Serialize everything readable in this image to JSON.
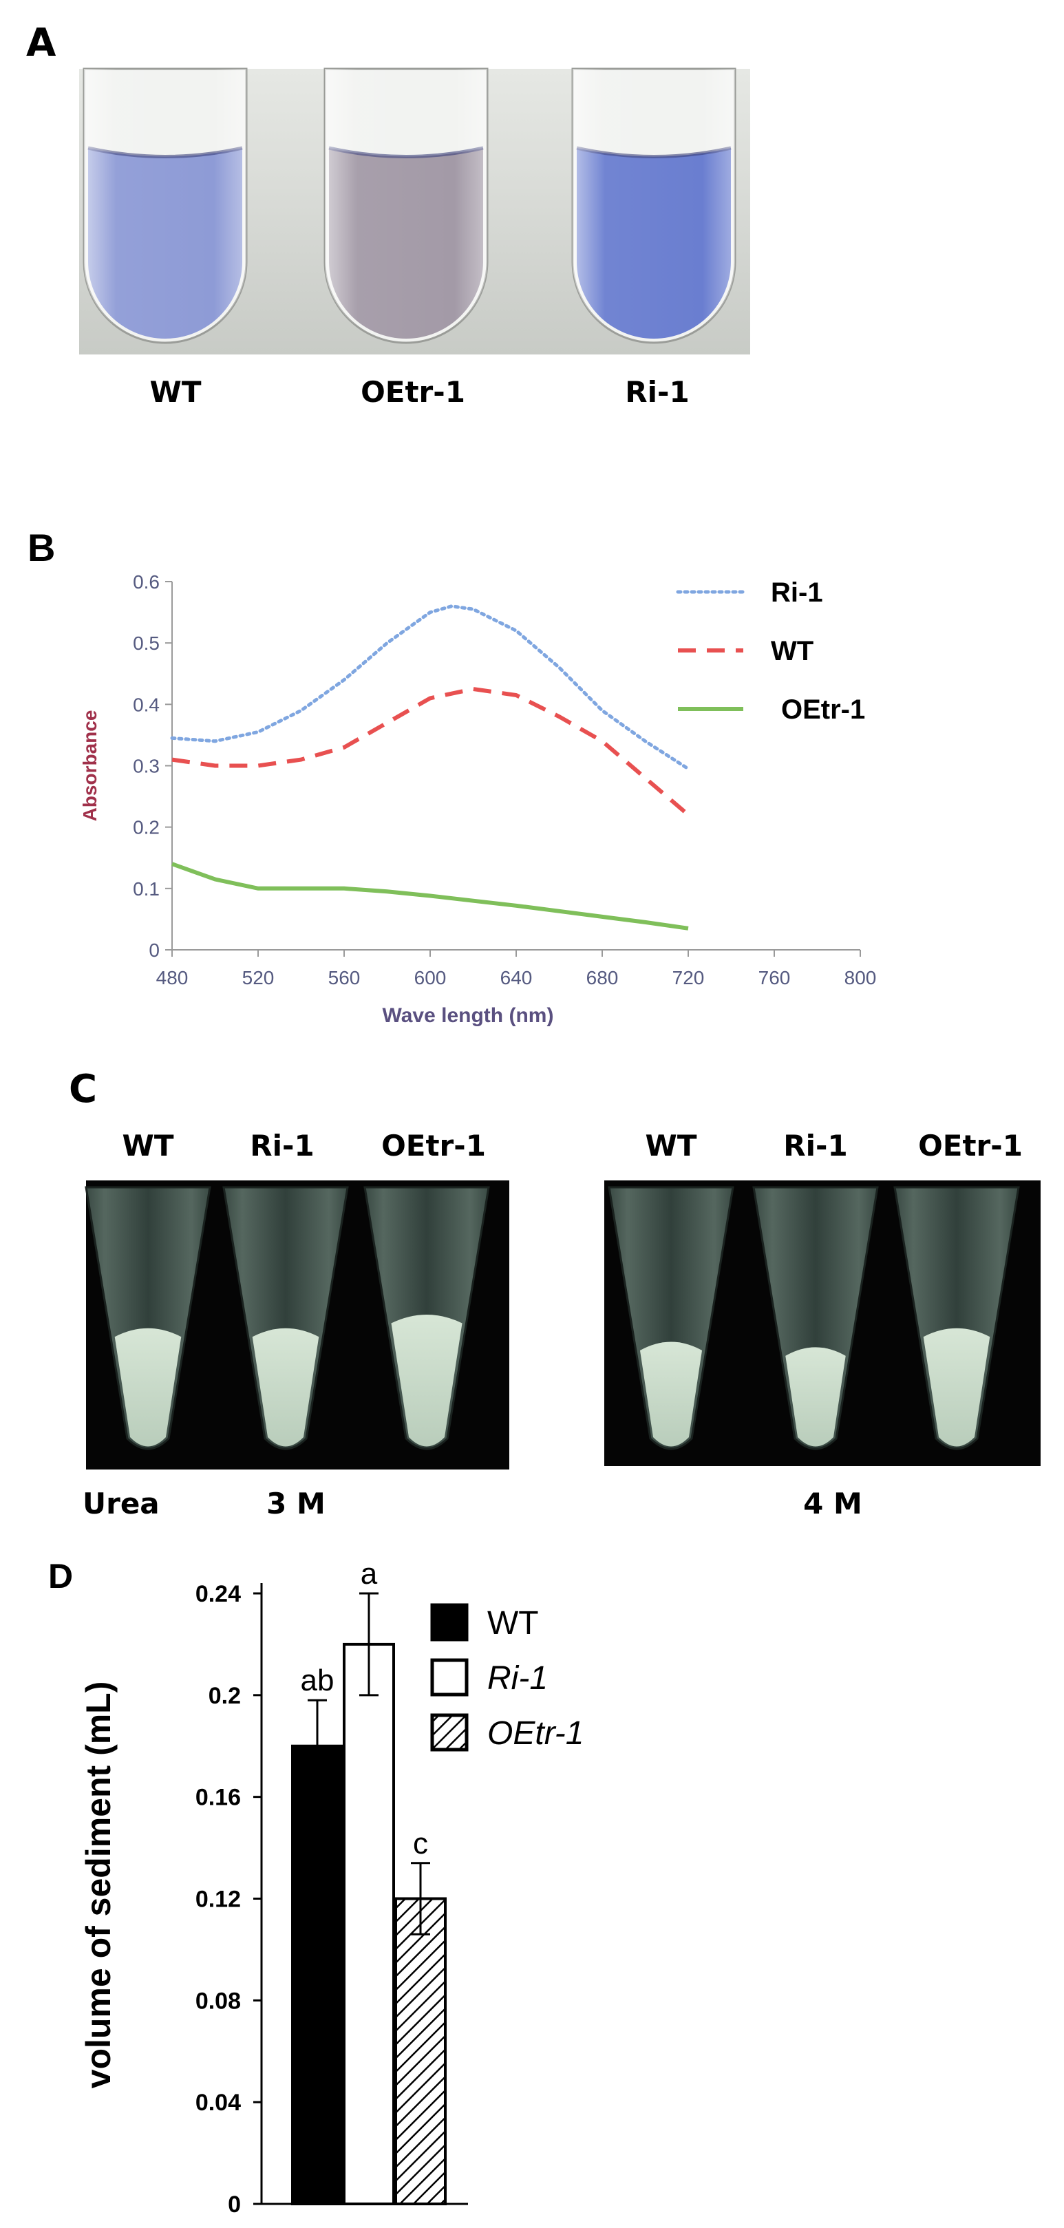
{
  "panel_a": {
    "letter": "A",
    "tube_labels": [
      "WT",
      "OEtr-1",
      "Ri-1"
    ],
    "tube_colors": [
      "#8e9bd6",
      "#a39aa7",
      "#6a7ed0"
    ]
  },
  "panel_c": {
    "letter": "C",
    "group1_labels": [
      "WT",
      "Ri-1",
      "OEtr-1"
    ],
    "group2_labels": [
      "WT",
      "Ri-1",
      "OEtr-1"
    ],
    "urea_label": "Urea",
    "conc1": "3 M",
    "conc2": "4 M"
  },
  "chart_data": [
    {
      "panel": "B",
      "type": "line",
      "title": "",
      "xlabel": "Wave length (nm)",
      "ylabel": "Absorbance",
      "xlim": [
        480,
        800
      ],
      "ylim": [
        0,
        0.6
      ],
      "x_ticks": [
        "480",
        "520",
        "560",
        "600",
        "640",
        "680",
        "720",
        "760",
        "800"
      ],
      "y_ticks": [
        "0",
        "0.1",
        "0.2",
        "0.3",
        "0.4",
        "0.5",
        "0.6"
      ],
      "legend": "top-right",
      "series": [
        {
          "name": "Ri-1",
          "style": "dotted",
          "color": "#7fa6e0",
          "x": [
            480,
            500,
            520,
            540,
            560,
            580,
            600,
            610,
            620,
            640,
            660,
            680,
            700,
            720
          ],
          "y": [
            0.345,
            0.34,
            0.355,
            0.39,
            0.44,
            0.5,
            0.55,
            0.56,
            0.555,
            0.52,
            0.46,
            0.39,
            0.34,
            0.295
          ]
        },
        {
          "name": "WT",
          "style": "dashed",
          "color": "#e85050",
          "x": [
            480,
            500,
            520,
            540,
            560,
            580,
            600,
            620,
            640,
            660,
            680,
            700,
            720
          ],
          "y": [
            0.31,
            0.3,
            0.3,
            0.31,
            0.33,
            0.37,
            0.41,
            0.425,
            0.415,
            0.38,
            0.34,
            0.28,
            0.22
          ]
        },
        {
          "name": "OEtr-1",
          "style": "solid",
          "color": "#7fbf5a",
          "x": [
            480,
            500,
            520,
            540,
            560,
            580,
            600,
            620,
            640,
            660,
            680,
            700,
            720
          ],
          "y": [
            0.14,
            0.115,
            0.1,
            0.1,
            0.1,
            0.095,
            0.088,
            0.08,
            0.072,
            0.063,
            0.054,
            0.045,
            0.035
          ]
        }
      ]
    },
    {
      "panel": "D",
      "type": "bar",
      "title": "",
      "xlabel": "",
      "ylabel": "volume of sediment (mL)",
      "ylim": [
        0,
        0.24
      ],
      "y_ticks": [
        "0",
        "0.04",
        "0.08",
        "0.12",
        "0.16",
        "0.2",
        "0.24"
      ],
      "categories": [
        "WT",
        "Ri-1",
        "OEtr-1"
      ],
      "values": [
        0.18,
        0.22,
        0.12
      ],
      "errors": [
        0.018,
        0.02,
        0.014
      ],
      "significance": [
        "ab",
        "a",
        "c"
      ],
      "fills": [
        "solid-black",
        "white",
        "hatched"
      ],
      "legend": "right"
    }
  ]
}
